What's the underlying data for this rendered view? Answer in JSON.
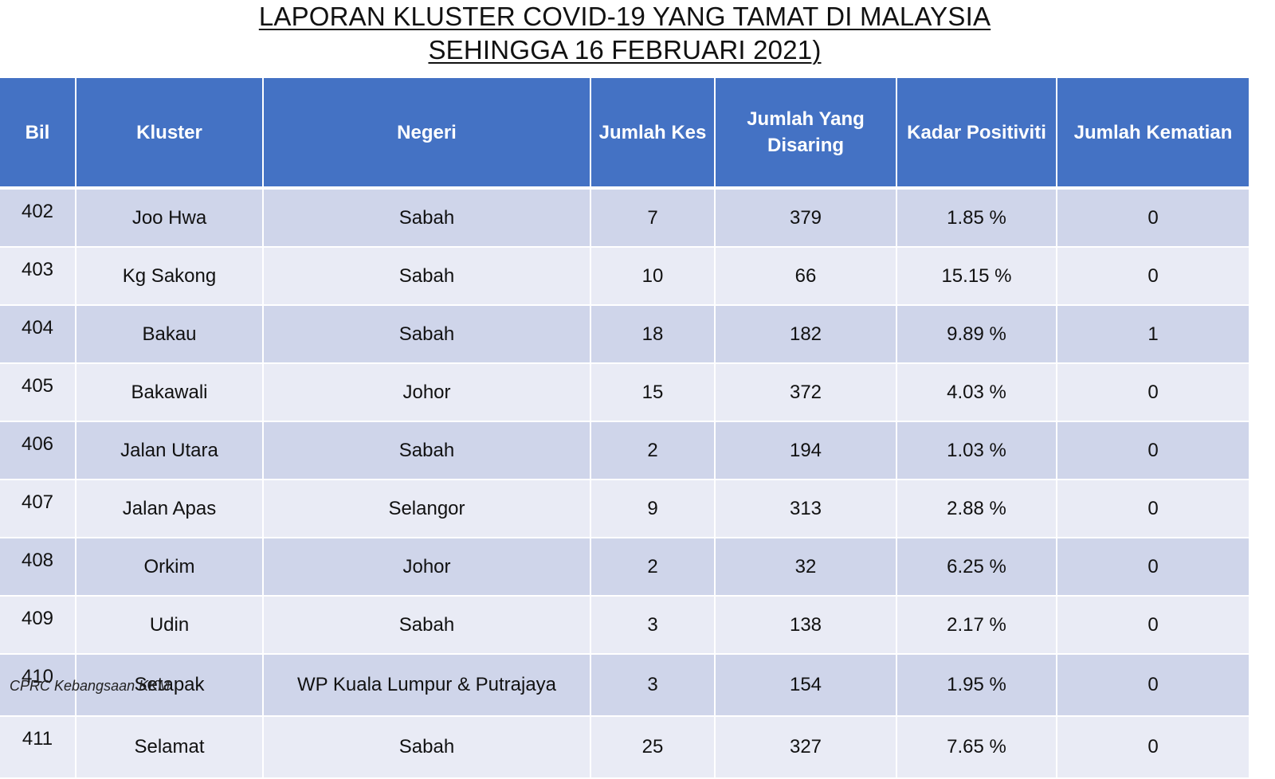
{
  "title": {
    "line1": "LAPORAN KLUSTER COVID-19 YANG TAMAT DI MALAYSIA",
    "line2": "SEHINGGA 16 FEBRUARI 2021)"
  },
  "table": {
    "headers": [
      "Bil",
      "Kluster",
      "Negeri",
      "Jumlah Kes",
      "Jumlah Yang Disaring",
      "Kadar Positiviti",
      "Jumlah Kematian"
    ],
    "rows": [
      [
        "402",
        "Joo Hwa",
        "Sabah",
        "7",
        "379",
        "1.85 %",
        "0"
      ],
      [
        "403",
        "Kg Sakong",
        "Sabah",
        "10",
        "66",
        "15.15 %",
        "0"
      ],
      [
        "404",
        "Bakau",
        "Sabah",
        "18",
        "182",
        "9.89 %",
        "1"
      ],
      [
        "405",
        "Bakawali",
        "Johor",
        "15",
        "372",
        "4.03 %",
        "0"
      ],
      [
        "406",
        "Jalan Utara",
        "Sabah",
        "2",
        "194",
        "1.03 %",
        "0"
      ],
      [
        "407",
        "Jalan Apas",
        "Selangor",
        "9",
        "313",
        "2.88 %",
        "0"
      ],
      [
        "408",
        "Orkim",
        "Johor",
        "2",
        "32",
        "6.25 %",
        "0"
      ],
      [
        "409",
        "Udin",
        "Sabah",
        "3",
        "138",
        "2.17 %",
        "0"
      ],
      [
        "410",
        "Setapak",
        "WP Kuala Lumpur & Putrajaya",
        "3",
        "154",
        "1.95 %",
        "0"
      ],
      [
        "411",
        "Selamat",
        "Sabah",
        "25",
        "327",
        "7.65 %",
        "0"
      ]
    ]
  },
  "footer": "CPRC Kebangsaan KKM",
  "colors": {
    "header_bg": "#4472c4",
    "row_dark": "#cfd5ea",
    "row_light": "#e9ebf5"
  }
}
